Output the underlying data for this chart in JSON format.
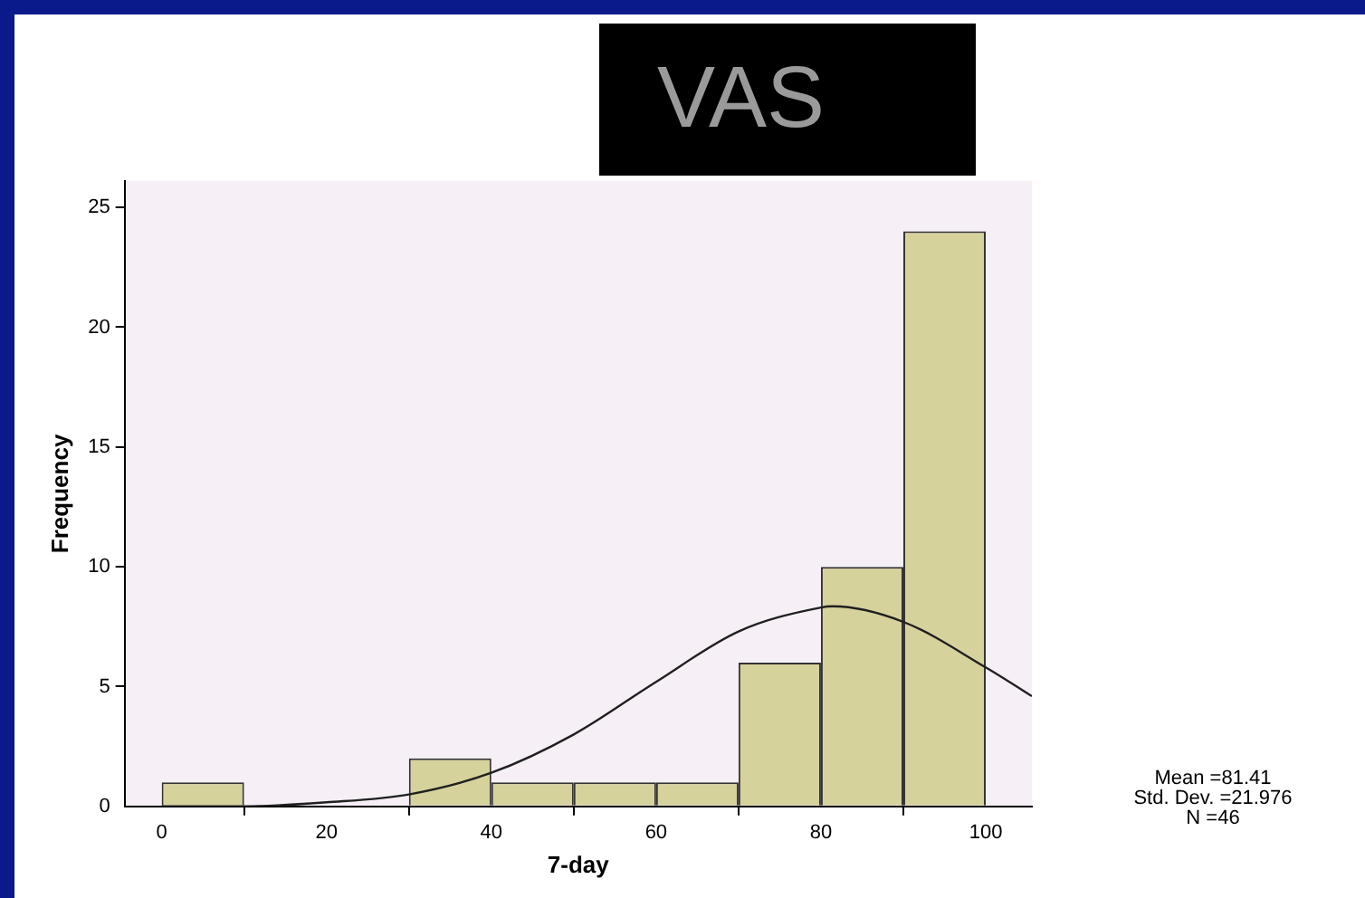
{
  "chart_data": {
    "type": "histogram",
    "title": "VAS",
    "xlabel": "7-day",
    "ylabel": "Frequency",
    "bins": [
      0,
      10,
      30,
      40,
      50,
      60,
      70,
      80,
      90,
      100
    ],
    "values": [
      1,
      0,
      2,
      1,
      1,
      1,
      6,
      10,
      24
    ],
    "color": "#d6d29c",
    "series": [
      {
        "type": "line",
        "color": "#202020",
        "marker": "none",
        "x": [
          0,
          10,
          20,
          30,
          40,
          50,
          60,
          70,
          80,
          81.41,
          90,
          100,
          105.6
        ],
        "values": [
          0,
          0,
          0.17,
          0.5,
          1.4,
          3,
          5.2,
          7.3,
          8.3,
          8.35,
          7.7,
          5.8,
          4.6
        ]
      }
    ],
    "xlim": [
      -4.5,
      105.6
    ],
    "ylim": [
      0,
      26.1
    ],
    "xticks": [
      0,
      20,
      40,
      60,
      80,
      100
    ],
    "yticks": [
      0,
      5,
      10,
      15,
      20,
      25
    ],
    "grid": false,
    "legend": false,
    "annotations": [
      "Mean =81.41",
      "Std. Dev. =21.976",
      "N =46"
    ]
  }
}
